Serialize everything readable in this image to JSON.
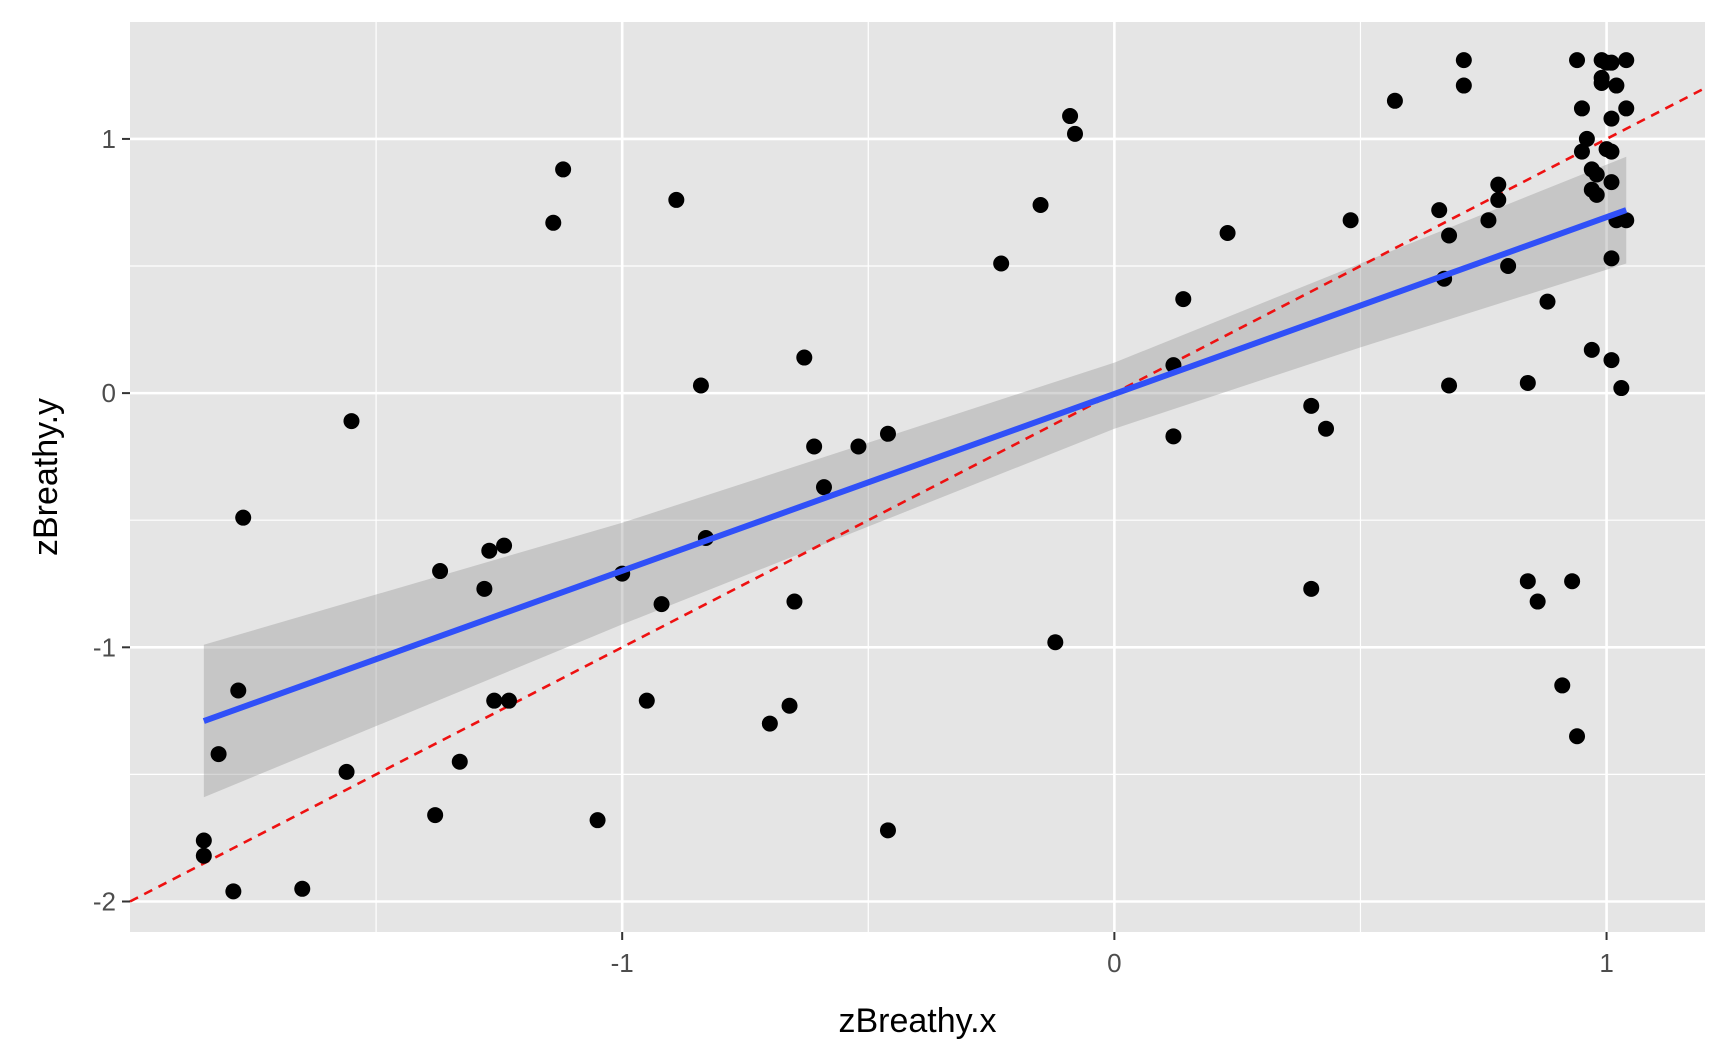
{
  "chart_data": {
    "type": "scatter",
    "xlabel": "zBreathy.x",
    "ylabel": "zBreathy.y",
    "xlim": [
      -2.0,
      1.2
    ],
    "ylim": [
      -2.12,
      1.46
    ],
    "x_ticks": [
      -1,
      0,
      1
    ],
    "x_tick_labels": [
      "-1",
      "0",
      "1"
    ],
    "y_ticks": [
      -2,
      -1,
      0,
      1
    ],
    "y_tick_labels": [
      "-2",
      "-1",
      "0",
      "1"
    ],
    "x_minor_breaks": [
      -1.5,
      -0.5,
      0.5
    ],
    "y_minor_breaks": [
      -1.5,
      -0.5,
      0.5
    ],
    "grid": true,
    "colors": {
      "panel_background": "#e5e5e5",
      "grid": "#ffffff",
      "points": "#000000",
      "fit_line": "#3050f8",
      "confidence_band": "#999999",
      "reference_line": "#ee1111"
    },
    "points": [
      [
        -1.85,
        -1.82
      ],
      [
        -1.85,
        -1.76
      ],
      [
        -1.82,
        -1.42
      ],
      [
        -1.79,
        -1.96
      ],
      [
        -1.78,
        -1.17
      ],
      [
        -1.77,
        -0.49
      ],
      [
        -1.65,
        -1.95
      ],
      [
        -1.56,
        -1.49
      ],
      [
        -1.55,
        -0.11
      ],
      [
        -1.38,
        -1.66
      ],
      [
        -1.37,
        -0.7
      ],
      [
        -1.33,
        -1.45
      ],
      [
        -1.28,
        -0.77
      ],
      [
        -1.27,
        -0.62
      ],
      [
        -1.26,
        -1.21
      ],
      [
        -1.24,
        -0.6
      ],
      [
        -1.23,
        -1.21
      ],
      [
        -1.14,
        0.67
      ],
      [
        -1.12,
        0.88
      ],
      [
        -1.05,
        -1.68
      ],
      [
        -1.0,
        -0.71
      ],
      [
        -0.95,
        -1.21
      ],
      [
        -0.92,
        -0.83
      ],
      [
        -0.89,
        0.76
      ],
      [
        -0.84,
        0.03
      ],
      [
        -0.83,
        -0.57
      ],
      [
        -0.7,
        -1.3
      ],
      [
        -0.66,
        -1.23
      ],
      [
        -0.65,
        -0.82
      ],
      [
        -0.63,
        0.14
      ],
      [
        -0.61,
        -0.21
      ],
      [
        -0.59,
        -0.37
      ],
      [
        -0.52,
        -0.21
      ],
      [
        -0.46,
        -0.16
      ],
      [
        -0.46,
        -1.72
      ],
      [
        -0.23,
        0.51
      ],
      [
        -0.15,
        0.74
      ],
      [
        -0.12,
        -0.98
      ],
      [
        -0.09,
        1.09
      ],
      [
        -0.08,
        1.02
      ],
      [
        0.12,
        -0.17
      ],
      [
        0.12,
        0.11
      ],
      [
        0.14,
        0.37
      ],
      [
        0.23,
        0.63
      ],
      [
        0.4,
        -0.77
      ],
      [
        0.4,
        -0.05
      ],
      [
        0.43,
        -0.14
      ],
      [
        0.48,
        0.68
      ],
      [
        0.57,
        1.15
      ],
      [
        0.66,
        0.72
      ],
      [
        0.67,
        0.45
      ],
      [
        0.68,
        0.03
      ],
      [
        0.68,
        0.62
      ],
      [
        0.71,
        1.31
      ],
      [
        0.71,
        1.21
      ],
      [
        0.76,
        0.68
      ],
      [
        0.78,
        0.76
      ],
      [
        0.78,
        0.82
      ],
      [
        0.8,
        0.5
      ],
      [
        0.84,
        -0.74
      ],
      [
        0.84,
        0.04
      ],
      [
        0.86,
        -0.82
      ],
      [
        0.88,
        0.36
      ],
      [
        0.91,
        -1.15
      ],
      [
        0.93,
        -0.74
      ],
      [
        0.94,
        -1.35
      ],
      [
        0.94,
        1.31
      ],
      [
        0.95,
        1.12
      ],
      [
        0.95,
        0.95
      ],
      [
        0.96,
        1.0
      ],
      [
        0.97,
        0.88
      ],
      [
        0.97,
        0.8
      ],
      [
        0.97,
        0.17
      ],
      [
        0.98,
        0.78
      ],
      [
        0.98,
        0.86
      ],
      [
        0.99,
        1.22
      ],
      [
        0.99,
        1.31
      ],
      [
        0.99,
        1.24
      ],
      [
        1.0,
        1.3
      ],
      [
        1.0,
        0.96
      ],
      [
        1.01,
        0.13
      ],
      [
        1.01,
        0.83
      ],
      [
        1.01,
        0.95
      ],
      [
        1.01,
        0.53
      ],
      [
        1.01,
        1.3
      ],
      [
        1.01,
        1.08
      ],
      [
        1.02,
        0.68
      ],
      [
        1.02,
        1.21
      ],
      [
        1.03,
        0.02
      ],
      [
        1.04,
        0.68
      ],
      [
        1.04,
        1.12
      ],
      [
        1.04,
        1.31
      ]
    ],
    "fit_line": {
      "x": [
        -1.85,
        1.04
      ],
      "y": [
        -1.29,
        0.72
      ]
    },
    "confidence_band": {
      "x": [
        -1.85,
        -1.0,
        0.0,
        0.5,
        1.04
      ],
      "lower": [
        -1.59,
        -0.91,
        -0.14,
        0.18,
        0.51
      ],
      "upper": [
        -0.99,
        -0.51,
        0.12,
        0.51,
        0.93
      ]
    },
    "reference_line": {
      "x": [
        -2.0,
        1.2
      ],
      "y": [
        -2.0,
        1.2
      ]
    }
  }
}
